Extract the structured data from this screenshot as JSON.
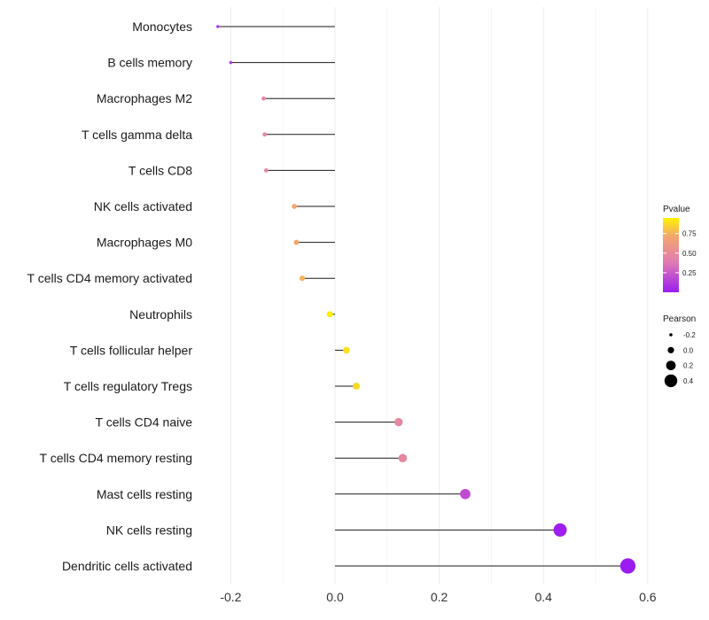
{
  "chart_data": {
    "type": "lollipop",
    "title": "",
    "xlabel": "",
    "ylabel": "",
    "xlim": [
      -0.25,
      0.62
    ],
    "x_ticks": [
      -0.2,
      0.0,
      0.2,
      0.4,
      0.6
    ],
    "x_tick_labels": [
      "-0.2",
      "0.0",
      "0.2",
      "0.4",
      "0.6"
    ],
    "categories": [
      "Monocytes",
      "B cells memory",
      "Macrophages M2",
      "T cells gamma delta",
      "T cells CD8",
      "NK cells activated",
      "Macrophages M0",
      "T cells CD4 memory activated",
      "Neutrophils",
      "T cells follicular helper",
      "T cells regulatory  Tregs",
      "T cells CD4 naive",
      "T cells CD4 memory resting",
      "Mast cells resting",
      "NK cells resting",
      "Dendritic cells activated"
    ],
    "pearson": [
      -0.225,
      -0.2,
      -0.137,
      -0.135,
      -0.132,
      -0.078,
      -0.074,
      -0.063,
      -0.01,
      0.022,
      0.041,
      0.122,
      0.13,
      0.25,
      0.432,
      0.562
    ],
    "pvalue": [
      0.06,
      0.15,
      0.5,
      0.5,
      0.5,
      0.75,
      0.75,
      0.78,
      0.95,
      0.9,
      0.88,
      0.5,
      0.5,
      0.2,
      0.01,
      0.0
    ],
    "color_legend": {
      "title": "Pvalue",
      "ticks": [
        0.75,
        0.5,
        0.25
      ],
      "tick_labels": [
        "0.75",
        "0.50",
        "0.25"
      ],
      "range": [
        0.0,
        0.95
      ],
      "colors": [
        "#9b1cf0",
        "#e07bb3",
        "#f3a66e",
        "#fff200"
      ]
    },
    "size_legend": {
      "title": "Pearson",
      "values": [
        -0.2,
        0.0,
        0.2,
        0.4
      ],
      "labels": [
        "-0.2",
        "0.0",
        "0.2",
        "0.4"
      ]
    },
    "grid": true,
    "legend_position": "right"
  }
}
